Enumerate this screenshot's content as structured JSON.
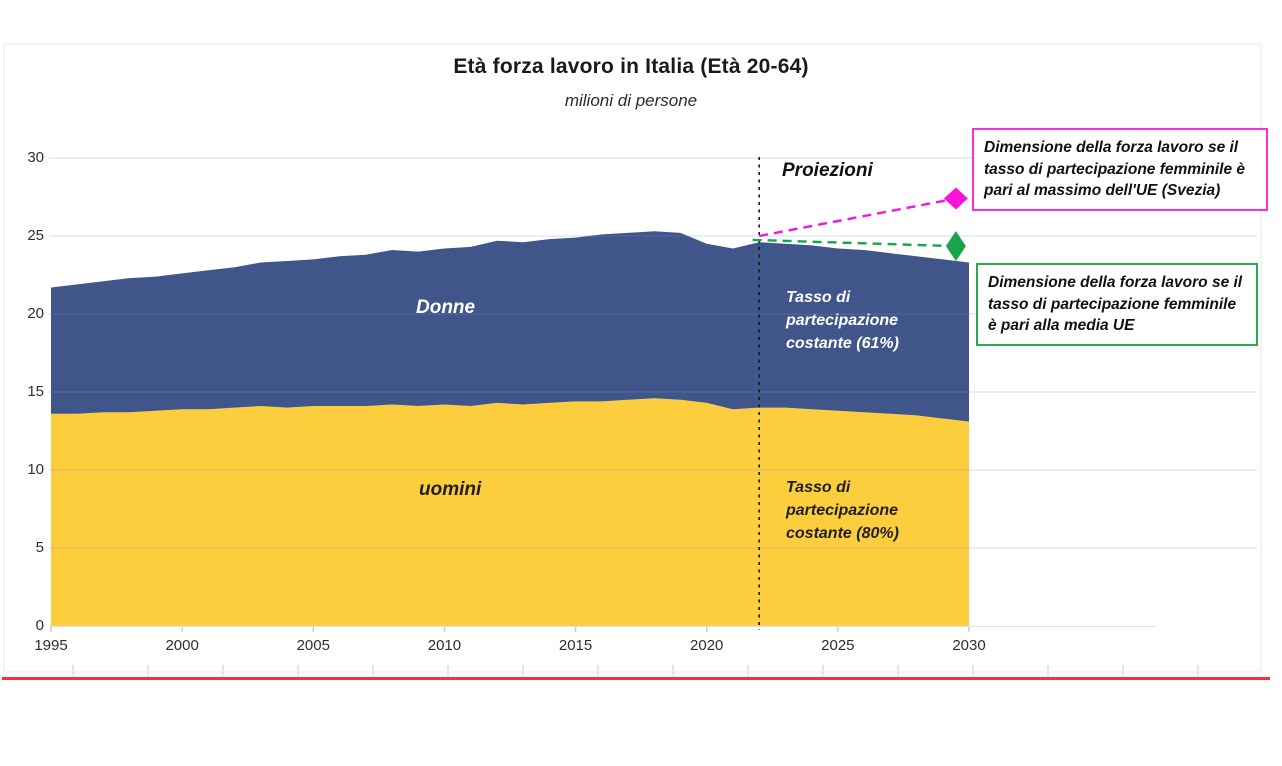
{
  "chart": {
    "title": "Età forza lavoro in Italia  (Età 20-64)",
    "subtitle": "milioni di persone",
    "labels": {
      "donne": "Donne",
      "uomini": "uomini",
      "proiezioni": "Proiezioni",
      "tasso_donne": "Tasso di partecipazione costante (61%)",
      "tasso_uomini": "Tasso di partecipazione costante (80%)"
    },
    "annotations": {
      "massimo_ue": "Dimensione della forza lavoro se il tasso di partecipazione femminile è pari al massimo dell'UE (Svezia)",
      "media_ue": "Dimensione della forza lavoro se il tasso di partecipazione femminile è pari alla media UE"
    },
    "colors": {
      "uomini_fill": "#fccd3c",
      "donne_fill": "#40568b",
      "magenta": "#f814d9",
      "green": "#17a44b",
      "red_underline": "#f53138",
      "gridline": "#7d94c0",
      "projection_line": "#151515"
    }
  },
  "chart_data": {
    "type": "area",
    "stacked": true,
    "title": "Età forza lavoro in Italia (Età 20-64)",
    "subtitle": "milioni di persone",
    "xlabel": "",
    "ylabel": "milioni di persone",
    "xlim": [
      1995,
      2030
    ],
    "ylim": [
      0,
      30
    ],
    "xticks": [
      1995,
      2000,
      2005,
      2010,
      2015,
      2020,
      2025,
      2030
    ],
    "yticks": [
      0,
      5,
      10,
      15,
      20,
      25,
      30
    ],
    "grid": true,
    "legend_position": "none",
    "projection_start": 2022,
    "x": [
      1995,
      1996,
      1997,
      1998,
      1999,
      2000,
      2001,
      2002,
      2003,
      2004,
      2005,
      2006,
      2007,
      2008,
      2009,
      2010,
      2011,
      2012,
      2013,
      2014,
      2015,
      2016,
      2017,
      2018,
      2019,
      2020,
      2021,
      2022,
      2023,
      2024,
      2025,
      2026,
      2027,
      2028,
      2029,
      2030
    ],
    "series": [
      {
        "name": "uomini",
        "color": "#fccd3c",
        "values": [
          13.6,
          13.6,
          13.7,
          13.7,
          13.8,
          13.9,
          13.9,
          14.0,
          14.1,
          14.0,
          14.1,
          14.1,
          14.1,
          14.2,
          14.1,
          14.2,
          14.1,
          14.3,
          14.2,
          14.3,
          14.4,
          14.4,
          14.5,
          14.6,
          14.5,
          14.3,
          13.9,
          14.0,
          14.0,
          13.9,
          13.8,
          13.7,
          13.6,
          13.5,
          13.3,
          13.1
        ]
      },
      {
        "name": "Donne",
        "color": "#40568b",
        "values": [
          8.1,
          8.3,
          8.4,
          8.6,
          8.6,
          8.7,
          8.9,
          9.0,
          9.2,
          9.4,
          9.4,
          9.6,
          9.7,
          9.9,
          9.9,
          10.0,
          10.2,
          10.4,
          10.4,
          10.5,
          10.5,
          10.7,
          10.7,
          10.7,
          10.7,
          10.2,
          10.3,
          10.6,
          10.5,
          10.5,
          10.4,
          10.4,
          10.3,
          10.2,
          10.2,
          10.2
        ]
      }
    ],
    "scenarios": [
      {
        "name": "massimo UE (Svezia)",
        "color": "#f814d9",
        "style": "dashed",
        "start": {
          "x": 2022,
          "y": 25.0
        },
        "end": {
          "x": 2029.5,
          "y": 27.4
        },
        "marker": "diamond"
      },
      {
        "name": "media UE",
        "color": "#17a44b",
        "style": "dashed",
        "start": {
          "x": 2021.75,
          "y": 24.75
        },
        "end": {
          "x": 2029.5,
          "y": 24.35
        },
        "marker": "diamond"
      }
    ]
  }
}
